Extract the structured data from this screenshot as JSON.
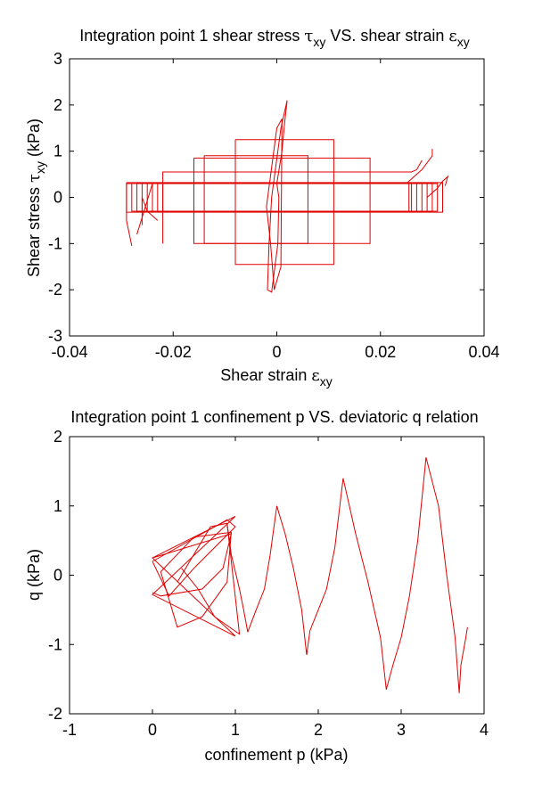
{
  "colors": {
    "series": "#e00000",
    "axes": "#000000",
    "background": "#ffffff"
  },
  "chart_data": [
    {
      "type": "line",
      "title_parts": [
        "Integration point 1 shear stress ",
        "τ",
        "xy",
        " VS. shear strain ",
        "ε",
        "xy"
      ],
      "xlabel_parts": [
        "Shear strain ",
        "ε",
        "xy"
      ],
      "ylabel_parts": [
        "Shear stress ",
        "τ",
        "xy",
        " (kPa)"
      ],
      "xlim": [
        -0.04,
        0.04
      ],
      "ylim": [
        -3,
        3
      ],
      "xticks": [
        "-0.04",
        "-0.02",
        "0",
        "0.02",
        "0.04"
      ],
      "yticks": [
        "3",
        "2",
        "1",
        "0",
        "-1",
        "-2",
        "-3"
      ],
      "grid": false,
      "series": [
        {
          "x": [
            0.0,
            0.001,
            0.0015,
            0.002,
            0.0008,
            -0.001,
            -0.0015,
            -0.0018,
            -0.001,
            0.0002,
            0.0004,
            0.0
          ],
          "y": [
            0.3,
            1.0,
            1.6,
            2.1,
            1.5,
            0.0,
            -1.0,
            -2.0,
            -2.05,
            -1.0,
            0.0,
            0.3
          ]
        },
        {
          "x": [
            -0.002,
            0.0,
            0.001,
            0.0008,
            -0.0005,
            -0.0012,
            -0.002
          ],
          "y": [
            -0.2,
            1.5,
            1.7,
            -1.5,
            -2.0,
            -1.0,
            -0.2
          ]
        },
        {
          "x": [
            -0.008,
            0.011,
            0.011,
            -0.008,
            -0.008
          ],
          "y": [
            1.25,
            1.25,
            -1.45,
            -1.45,
            1.25
          ]
        },
        {
          "x": [
            -0.014,
            0.006,
            0.006,
            -0.014,
            -0.014
          ],
          "y": [
            0.9,
            0.9,
            -1.0,
            -1.0,
            0.9
          ]
        },
        {
          "x": [
            -0.016,
            0.018,
            0.018,
            -0.016,
            -0.016
          ],
          "y": [
            0.85,
            0.85,
            -1.0,
            -1.0,
            0.85
          ]
        },
        {
          "x": [
            -0.022,
            -0.022,
            0.026,
            0.027,
            0.028
          ],
          "y": [
            -1.0,
            0.55,
            0.55,
            0.6,
            0.8
          ]
        },
        {
          "x": [
            -0.025,
            0.025,
            0.026,
            0.028,
            0.03,
            0.03
          ],
          "y": [
            0.3,
            0.3,
            0.4,
            0.6,
            0.9,
            1.05
          ]
        },
        {
          "x": [
            -0.028,
            -0.029,
            -0.029,
            -0.024,
            -0.027
          ],
          "y": [
            -1.05,
            -0.5,
            0.3,
            0.3,
            -0.8
          ]
        },
        {
          "x": [
            -0.029,
            0.032,
            0.032,
            -0.029,
            -0.029
          ],
          "y": [
            0.32,
            0.32,
            -0.32,
            -0.32,
            0.32
          ]
        },
        {
          "x": [
            -0.028,
            0.031,
            0.031,
            -0.028,
            -0.028
          ],
          "y": [
            0.3,
            0.3,
            -0.3,
            -0.3,
            0.3
          ]
        },
        {
          "x": [
            -0.027,
            0.03,
            0.03,
            -0.027,
            -0.027
          ],
          "y": [
            0.31,
            0.31,
            -0.31,
            -0.31,
            0.31
          ]
        },
        {
          "x": [
            -0.026,
            0.029,
            0.029,
            -0.026,
            -0.026
          ],
          "y": [
            0.3,
            0.3,
            -0.3,
            -0.3,
            0.3
          ]
        },
        {
          "x": [
            -0.025,
            0.028,
            0.028,
            -0.025,
            -0.025
          ],
          "y": [
            0.31,
            0.31,
            -0.31,
            -0.31,
            0.31
          ]
        },
        {
          "x": [
            -0.024,
            0.027,
            0.027,
            -0.024,
            -0.024
          ],
          "y": [
            0.3,
            0.3,
            -0.3,
            -0.3,
            0.3
          ]
        },
        {
          "x": [
            -0.023,
            0.026,
            0.026,
            -0.023,
            -0.023
          ],
          "y": [
            0.31,
            0.31,
            -0.31,
            -0.31,
            0.31
          ]
        },
        {
          "x": [
            -0.022,
            0.0255,
            0.0255,
            -0.022,
            -0.022
          ],
          "y": [
            0.3,
            0.3,
            -0.3,
            -0.3,
            0.3
          ]
        },
        {
          "x": [
            -0.026,
            -0.026,
            -0.025,
            -0.023
          ],
          "y": [
            -0.6,
            0.0,
            -0.3,
            -0.5
          ]
        },
        {
          "x": [
            0.029,
            0.031,
            0.032,
            0.033,
            0.0325
          ],
          "y": [
            0.0,
            0.2,
            0.35,
            0.45,
            0.25
          ]
        }
      ]
    },
    {
      "type": "line",
      "title": "Integration point 1 confinement p VS. deviatoric q relation",
      "xlabel": "confinement p (kPa)",
      "ylabel": "q (kPa)",
      "xlim": [
        -1,
        4
      ],
      "ylim": [
        -2,
        2
      ],
      "xticks": [
        "-1",
        "0",
        "1",
        "2",
        "3",
        "4"
      ],
      "yticks": [
        "2",
        "1",
        "0",
        "-1",
        "-2"
      ],
      "grid": false,
      "series": [
        {
          "x": [
            0.0,
            1.0,
            0.0,
            1.0,
            0.0,
            0.95,
            0.85,
            0.6,
            0.1,
            0.0
          ],
          "y": [
            0.25,
            0.85,
            -0.28,
            -0.88,
            0.25,
            0.6,
            0.1,
            -0.2,
            -0.3,
            -0.25
          ]
        },
        {
          "x": [
            0.0,
            0.9,
            1.0,
            0.5,
            0.2,
            0.0
          ],
          "y": [
            0.2,
            0.8,
            0.7,
            0.1,
            -0.3,
            0.2
          ]
        },
        {
          "x": [
            0.3,
            0.7,
            0.9,
            1.05,
            0.75,
            0.55,
            0.35
          ],
          "y": [
            -0.1,
            0.7,
            0.75,
            -0.85,
            -0.6,
            -0.2,
            0.1
          ]
        },
        {
          "x": [
            0.1,
            0.5,
            0.95,
            0.9,
            0.6,
            0.3,
            0.1
          ],
          "y": [
            0.05,
            0.55,
            0.62,
            -0.1,
            -0.6,
            -0.75,
            0.05
          ]
        },
        {
          "x": [
            0.9,
            0.95,
            1.05,
            1.1,
            1.15
          ],
          "y": [
            0.75,
            0.3,
            -0.2,
            -0.5,
            -0.82
          ]
        },
        {
          "x": [
            1.15,
            1.25,
            1.35,
            1.42,
            1.5,
            1.6,
            1.7,
            1.8,
            1.86
          ],
          "y": [
            -0.82,
            -0.5,
            -0.2,
            0.3,
            1.0,
            0.6,
            0.1,
            -0.5,
            -1.15
          ]
        },
        {
          "x": [
            1.86,
            1.9,
            2.0,
            2.1,
            2.2,
            2.3,
            2.45,
            2.6,
            2.75,
            2.82
          ],
          "y": [
            -1.15,
            -0.8,
            -0.5,
            -0.2,
            0.4,
            1.4,
            0.6,
            -0.1,
            -0.9,
            -1.65
          ]
        },
        {
          "x": [
            2.82,
            2.9,
            3.0,
            3.1,
            3.2,
            3.3,
            3.45,
            3.55,
            3.65,
            3.7
          ],
          "y": [
            -1.65,
            -1.3,
            -0.9,
            -0.3,
            0.5,
            1.7,
            1.0,
            0.0,
            -0.9,
            -1.7
          ]
        },
        {
          "x": [
            3.7,
            3.72,
            3.78,
            3.8
          ],
          "y": [
            -1.7,
            -1.3,
            -0.9,
            -0.75
          ]
        }
      ]
    }
  ]
}
